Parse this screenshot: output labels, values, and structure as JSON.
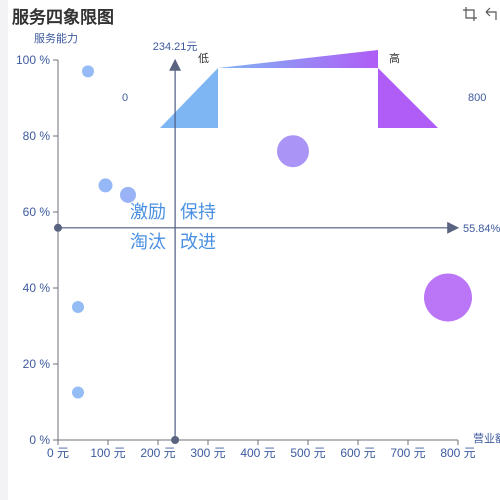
{
  "title": "服务四象限图",
  "toolbox": {
    "zoom_icon": "crop-zoom-icon",
    "restore_icon": "restore-undo-icon"
  },
  "chart_data": {
    "type": "scatter",
    "title": "服务四象限图",
    "ylabel": "服务能力",
    "xlabel": "营业额",
    "xlim": [
      0,
      800
    ],
    "ylim": [
      0,
      100
    ],
    "x_ticks": [
      "0 元",
      "100 元",
      "200 元",
      "300 元",
      "400 元",
      "500 元",
      "600 元",
      "700 元",
      "800 元"
    ],
    "y_ticks": [
      "0 %",
      "20 %",
      "40 %",
      "60 %",
      "80 %",
      "100 %"
    ],
    "grid": false,
    "mark_lines": {
      "x_value": 234.21,
      "x_label": "234.21元",
      "y_value": 55.84,
      "y_label": "55.84%"
    },
    "quadrant_labels": {
      "top_left": "激励",
      "top_right": "保持",
      "bottom_left": "淘汰",
      "bottom_right": "改进"
    },
    "visual_map": {
      "min_label": "0",
      "max_label": "800",
      "low_label": "低",
      "high_label": "高",
      "color_low": "#7eb6f4",
      "color_high": "#b05cf6"
    },
    "points": [
      {
        "x": 60,
        "y": 97,
        "size": 12
      },
      {
        "x": 95,
        "y": 67,
        "size": 14
      },
      {
        "x": 140,
        "y": 64.5,
        "size": 16
      },
      {
        "x": 470,
        "y": 76,
        "size": 32
      },
      {
        "x": 780,
        "y": 37.5,
        "size": 48
      },
      {
        "x": 40,
        "y": 35,
        "size": 12
      },
      {
        "x": 40,
        "y": 12.5,
        "size": 12
      }
    ]
  }
}
